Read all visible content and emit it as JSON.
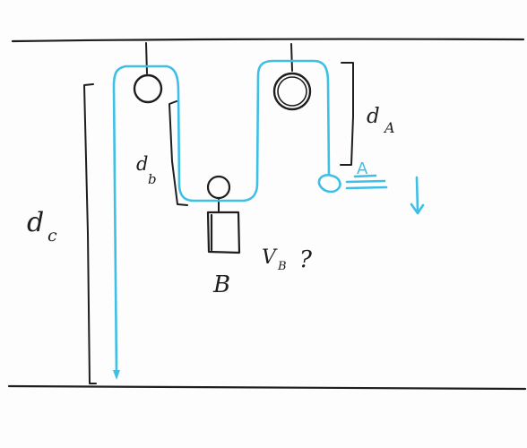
{
  "labels": {
    "d_a_main": "d",
    "d_a_sub": "A",
    "d_b_main": "d",
    "d_b_sub": "b",
    "d_c_main": "d",
    "d_c_sub": "c",
    "block_b": "B",
    "v_b_main": "V",
    "v_b_sub": "B",
    "v_b_q": "?",
    "point_a": "A"
  },
  "colors": {
    "ink": "#1e1e1e",
    "rope": "#3fbfe6"
  }
}
